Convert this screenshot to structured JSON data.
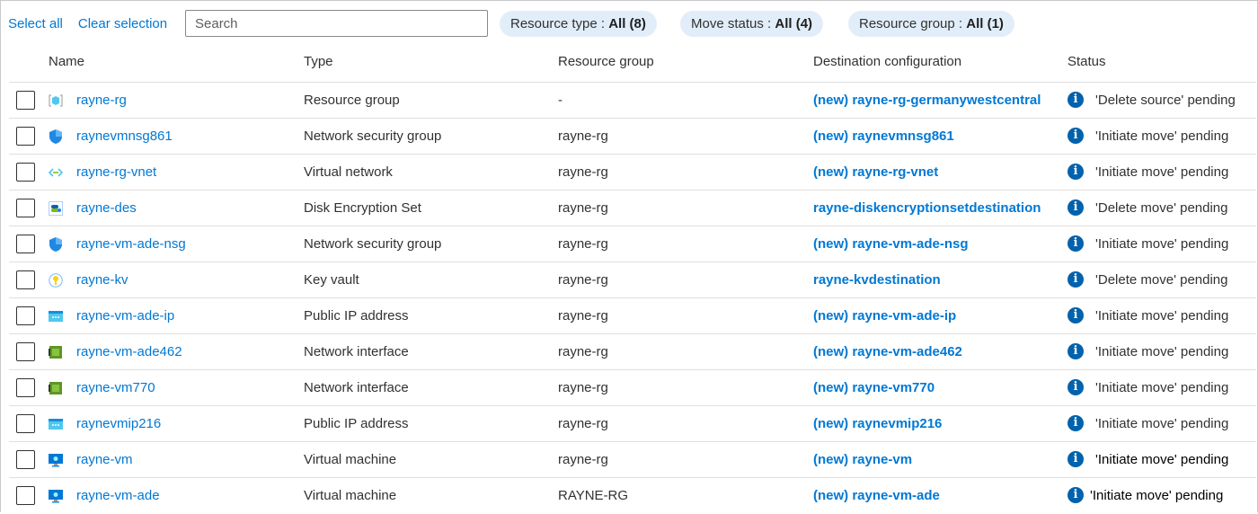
{
  "toolbar": {
    "select_all": "Select all",
    "clear_selection": "Clear selection",
    "search_placeholder": "Search"
  },
  "filters": [
    {
      "label": "Resource type : ",
      "value": "All (8)"
    },
    {
      "label": "Move status : ",
      "value": "All (4)"
    },
    {
      "label": "Resource group : ",
      "value": "All (1)"
    }
  ],
  "columns": {
    "name": "Name",
    "type": "Type",
    "rg": "Resource group",
    "dest": "Destination configuration",
    "status": "Status"
  },
  "rows": [
    {
      "icon": "resource-group-icon",
      "name": "rayne-rg",
      "type": "Resource group",
      "rg": "-",
      "dest": "(new) rayne-rg-germanywestcentral",
      "status": "'Delete source' pending"
    },
    {
      "icon": "network-security-group-icon",
      "name": "raynevmnsg861",
      "type": "Network security group",
      "rg": "rayne-rg",
      "dest": "(new) raynevmnsg861",
      "status": "'Initiate move' pending"
    },
    {
      "icon": "virtual-network-icon",
      "name": "rayne-rg-vnet",
      "type": "Virtual network",
      "rg": "rayne-rg",
      "dest": "(new) rayne-rg-vnet",
      "status": "'Initiate move' pending"
    },
    {
      "icon": "disk-encryption-set-icon",
      "name": "rayne-des",
      "type": "Disk Encryption Set",
      "rg": "rayne-rg",
      "dest": "rayne-diskencryptionsetdestination",
      "status": "'Delete move' pending"
    },
    {
      "icon": "network-security-group-icon",
      "name": "rayne-vm-ade-nsg",
      "type": "Network security group",
      "rg": "rayne-rg",
      "dest": "(new) rayne-vm-ade-nsg",
      "status": "'Initiate move' pending"
    },
    {
      "icon": "key-vault-icon",
      "name": "rayne-kv",
      "type": "Key vault",
      "rg": "rayne-rg",
      "dest": "rayne-kvdestination",
      "status": "'Delete move' pending"
    },
    {
      "icon": "public-ip-icon",
      "name": "rayne-vm-ade-ip",
      "type": "Public IP address",
      "rg": "rayne-rg",
      "dest": "(new) rayne-vm-ade-ip",
      "status": "'Initiate move' pending"
    },
    {
      "icon": "network-interface-icon",
      "name": "rayne-vm-ade462",
      "type": "Network interface",
      "rg": "rayne-rg",
      "dest": "(new) rayne-vm-ade462",
      "status": "'Initiate move' pending"
    },
    {
      "icon": "network-interface-icon",
      "name": "rayne-vm770",
      "type": "Network interface",
      "rg": "rayne-rg",
      "dest": "(new) rayne-vm770",
      "status": "'Initiate move' pending"
    },
    {
      "icon": "public-ip-icon",
      "name": "raynevmip216",
      "type": "Public IP address",
      "rg": "rayne-rg",
      "dest": "(new) raynevmip216",
      "status": "'Initiate move' pending"
    },
    {
      "icon": "virtual-machine-icon",
      "name": "rayne-vm",
      "type": "Virtual machine",
      "rg": "rayne-rg",
      "dest": "(new) rayne-vm",
      "status": "'Initiate move' pending"
    },
    {
      "icon": "virtual-machine-icon",
      "name": "rayne-vm-ade",
      "type": "Virtual machine",
      "rg": "RAYNE-RG",
      "dest": "(new) rayne-vm-ade",
      "status": "'Initiate move' pending"
    }
  ],
  "colors": {
    "link": "#0078d4",
    "pill": "#e1eefa",
    "info": "#0062ad"
  }
}
